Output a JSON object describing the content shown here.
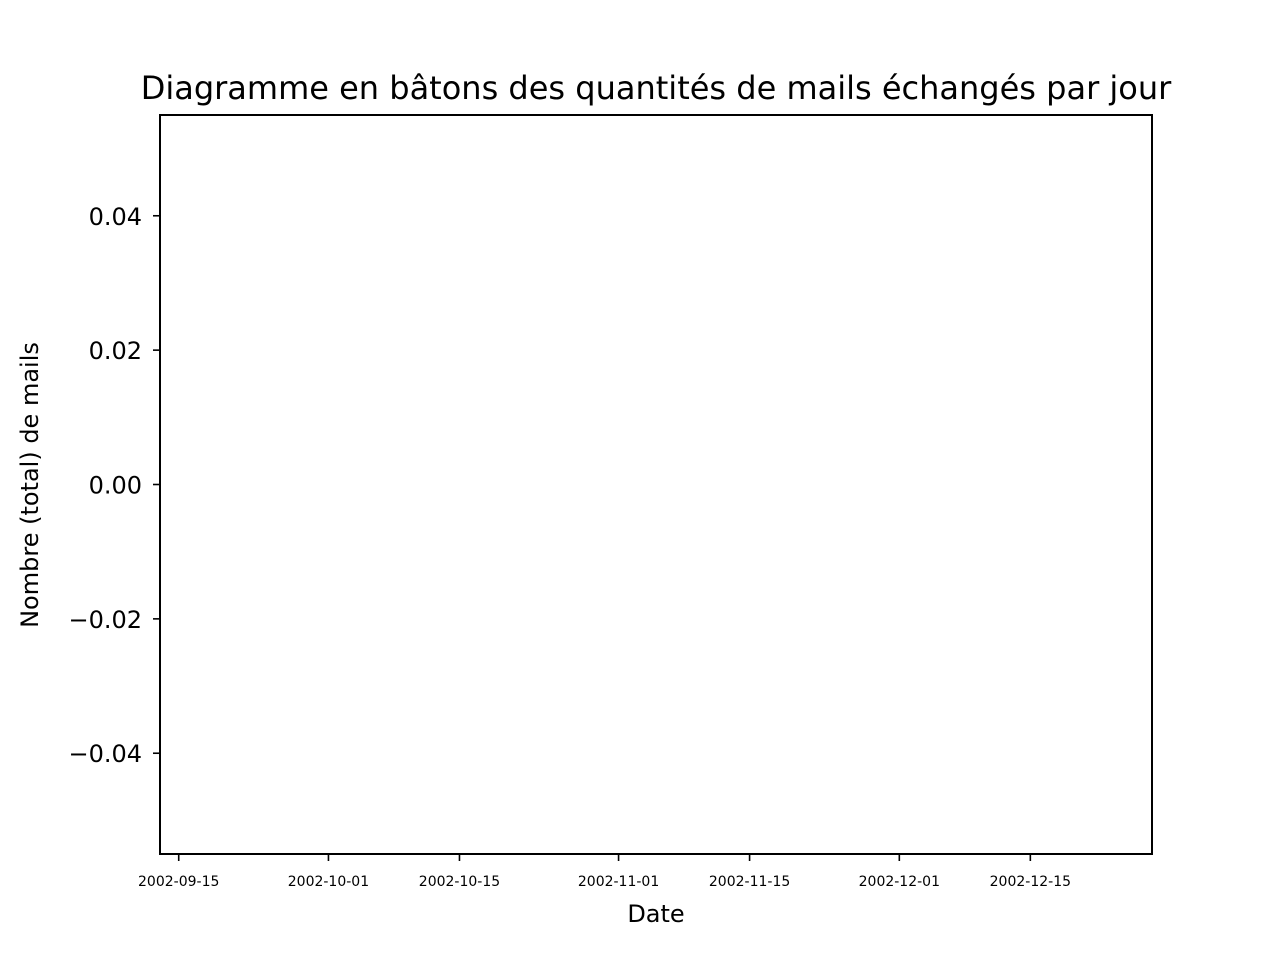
{
  "chart_data": {
    "type": "bar",
    "title": "Diagramme en bâtons des quantités de mails échangés par jour",
    "xlabel": "Date",
    "ylabel": "Nombre (total) de mails",
    "x_axis_type": "date",
    "xlim": [
      "2002-09-13",
      "2002-12-28"
    ],
    "ylim": [
      -0.055,
      0.055
    ],
    "x_ticks": [
      "2002-09-15",
      "2002-10-01",
      "2002-10-15",
      "2002-11-01",
      "2002-11-15",
      "2002-12-01",
      "2002-12-15"
    ],
    "y_ticks": [
      0.04,
      0.02,
      0.0,
      -0.02,
      -0.04
    ],
    "y_tick_labels": [
      "0.04",
      "0.02",
      "0.00",
      "−0.02",
      "−0.04"
    ],
    "grid": false,
    "legend": false,
    "series": [
      {
        "values": []
      }
    ],
    "colors": {
      "axes": "#000000",
      "background": "#ffffff"
    }
  }
}
